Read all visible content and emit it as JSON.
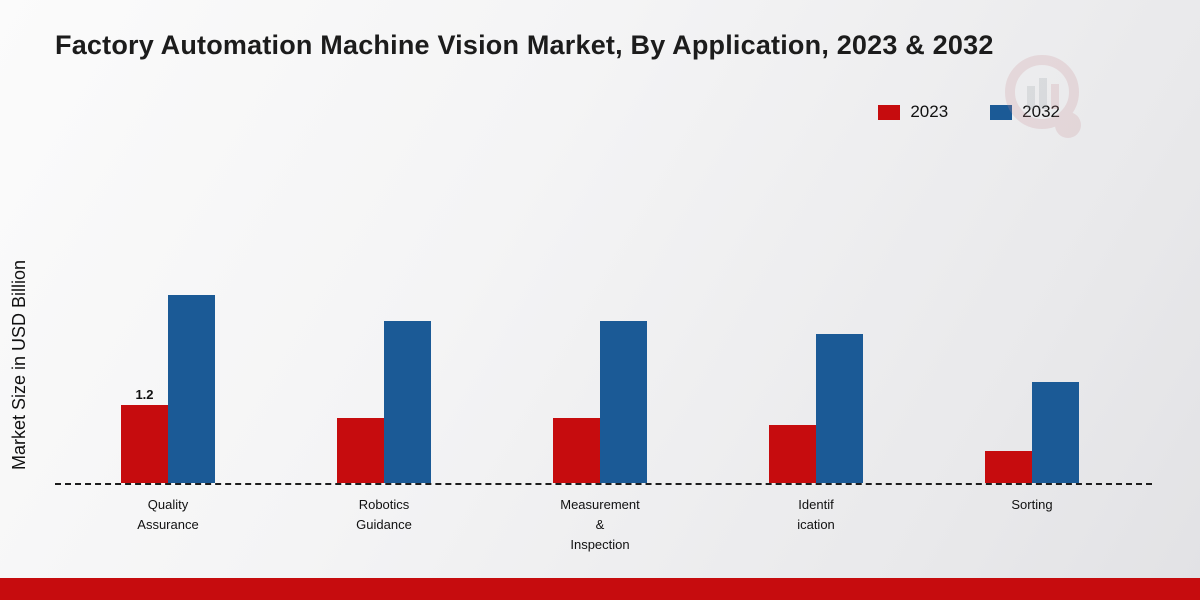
{
  "title": "Factory Automation Machine Vision Market, By Application, 2023 & 2032",
  "ylabel": "Market Size in USD Billion",
  "legend": [
    {
      "label": "2023",
      "color": "#c60c0e"
    },
    {
      "label": "2032",
      "color": "#1b5a96"
    }
  ],
  "chart_data": {
    "type": "bar",
    "title": "Factory Automation Machine Vision Market, By Application, 2023 & 2032",
    "xlabel": "",
    "ylabel": "Market Size in USD Billion",
    "categories": [
      [
        "Quality",
        "Assurance"
      ],
      [
        "Robotics",
        "Guidance"
      ],
      [
        "Measurement",
        "&",
        "Inspection"
      ],
      [
        "Identif",
        "ication"
      ],
      [
        "Sorting"
      ]
    ],
    "series": [
      {
        "name": "2023",
        "color": "#c60c0e",
        "values": [
          1.2,
          1.0,
          1.0,
          0.9,
          0.5
        ],
        "labels": [
          "1.2",
          null,
          null,
          null,
          null
        ]
      },
      {
        "name": "2032",
        "color": "#1b5a96",
        "values": [
          2.9,
          2.5,
          2.5,
          2.3,
          1.55
        ],
        "labels": [
          null,
          null,
          null,
          null,
          null
        ]
      }
    ],
    "ylim": [
      0,
      4.6
    ],
    "grid": false,
    "legend_position": "top-right",
    "baseline_style": "dashed"
  },
  "footer": {
    "bar_color": "#c60c0e"
  }
}
